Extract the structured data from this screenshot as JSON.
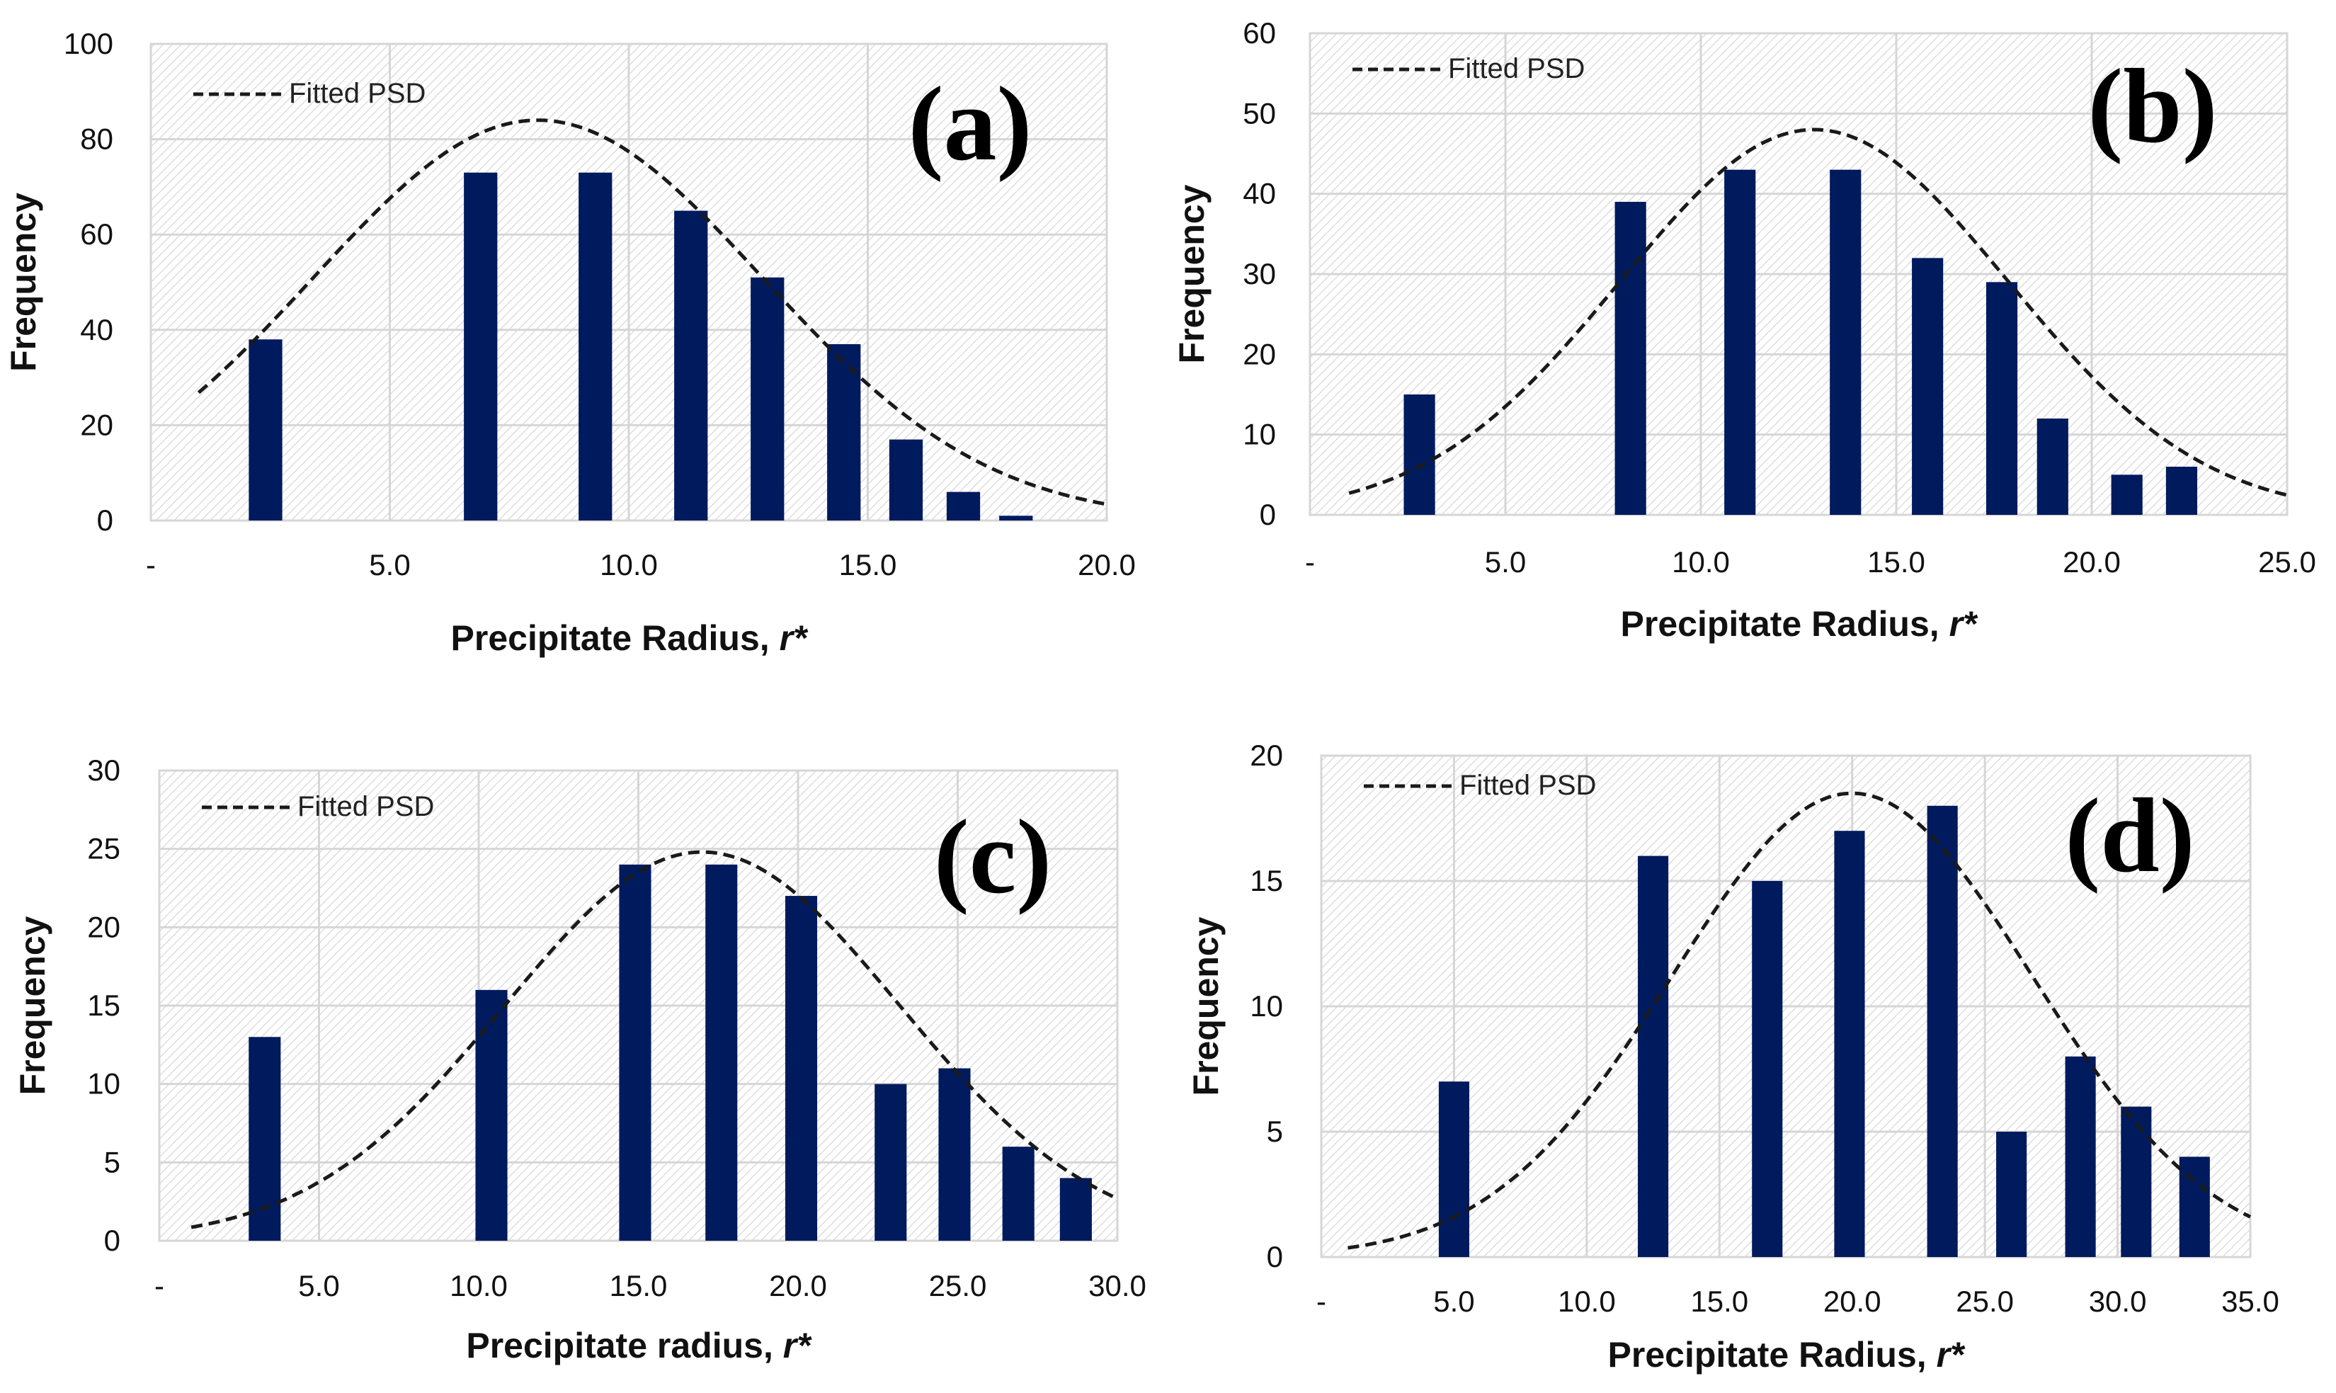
{
  "chart_data": [
    {
      "type": "bar",
      "panel_label": "(a)",
      "xlabel": "Precipitate Radius, ",
      "xlabel_italic": "r*",
      "ylabel": "Frequency",
      "xlim": [
        0,
        20
      ],
      "ylim": [
        0,
        100
      ],
      "xticks": [
        "-",
        "5.0",
        "10.0",
        "15.0",
        "20.0"
      ],
      "xtick_values": [
        0,
        5,
        10,
        15,
        20
      ],
      "yticks": [
        "0",
        "20",
        "40",
        "60",
        "80",
        "100"
      ],
      "ytick_values": [
        0,
        20,
        40,
        60,
        80,
        100
      ],
      "legend": "Fitted PSD",
      "legend_position": "top-left",
      "grid": true,
      "bar_width": 0.7,
      "bars": {
        "x": [
          2.4,
          6.9,
          9.3,
          11.3,
          12.9,
          14.5,
          15.8,
          17.0,
          18.1
        ],
        "values": [
          38,
          73,
          73,
          65,
          51,
          37,
          17,
          6,
          1
        ]
      },
      "fit": {
        "mean": 8.1,
        "sigma": 4.7,
        "peak": 84,
        "x_range": [
          1.0,
          20.0
        ]
      },
      "colors": {
        "bar": "#001a5e",
        "fit": "#1a1a1a"
      }
    },
    {
      "type": "bar",
      "panel_label": "(b)",
      "xlabel": "Precipitate Radius, ",
      "xlabel_italic": "r*",
      "ylabel": "Frequency",
      "xlim": [
        0,
        25
      ],
      "ylim": [
        0,
        60
      ],
      "xticks": [
        "-",
        "5.0",
        "10.0",
        "15.0",
        "20.0",
        "25.0"
      ],
      "xtick_values": [
        0,
        5,
        10,
        15,
        20,
        25
      ],
      "yticks": [
        "0",
        "10",
        "20",
        "30",
        "40",
        "50",
        "60"
      ],
      "ytick_values": [
        0,
        10,
        20,
        30,
        40,
        50,
        60
      ],
      "legend": "Fitted PSD",
      "legend_position": "top-left",
      "grid": true,
      "bar_width": 0.8,
      "bars": {
        "x": [
          2.8,
          8.2,
          11.0,
          13.7,
          15.8,
          17.7,
          19.0,
          20.9,
          22.3
        ],
        "values": [
          15,
          39,
          43,
          43,
          32,
          29,
          12,
          5,
          6
        ]
      },
      "fit": {
        "mean": 12.9,
        "sigma": 4.96,
        "peak": 48,
        "x_range": [
          1.0,
          25.0
        ]
      },
      "colors": {
        "bar": "#001a5e",
        "fit": "#1a1a1a"
      }
    },
    {
      "type": "bar",
      "panel_label": "(c)",
      "xlabel": "Precipitate radius, ",
      "xlabel_italic": "r*",
      "ylabel": "Frequency",
      "xlim": [
        0,
        30
      ],
      "ylim": [
        0,
        30
      ],
      "xticks": [
        "-",
        "5.0",
        "10.0",
        "15.0",
        "20.0",
        "25.0",
        "30.0"
      ],
      "xtick_values": [
        0,
        5,
        10,
        15,
        20,
        25,
        30
      ],
      "yticks": [
        "0",
        "5",
        "10",
        "15",
        "20",
        "25",
        "30"
      ],
      "ytick_values": [
        0,
        5,
        10,
        15,
        20,
        25,
        30
      ],
      "legend": "Fitted PSD",
      "legend_position": "top-left",
      "grid": true,
      "bar_width": 1.0,
      "bars": {
        "x": [
          3.3,
          10.4,
          14.9,
          17.6,
          20.1,
          22.9,
          24.9,
          26.9,
          28.7
        ],
        "values": [
          13,
          16,
          24,
          24,
          22,
          10,
          11,
          6,
          4
        ]
      },
      "fit": {
        "mean": 17.0,
        "sigma": 6.17,
        "peak": 24.8,
        "x_range": [
          1.0,
          30.0
        ]
      },
      "colors": {
        "bar": "#001a5e",
        "fit": "#1a1a1a"
      }
    },
    {
      "type": "bar",
      "panel_label": "(d)",
      "xlabel": "Precipitate Radius, ",
      "xlabel_italic": "r*",
      "ylabel": "Frequency",
      "xlim": [
        0,
        35
      ],
      "ylim": [
        0,
        20
      ],
      "xticks": [
        "-",
        "5.0",
        "10.0",
        "15.0",
        "20.0",
        "25.0",
        "30.0",
        "35.0"
      ],
      "xtick_values": [
        0,
        5,
        10,
        15,
        20,
        25,
        30,
        35
      ],
      "yticks": [
        "0",
        "5",
        "10",
        "15",
        "20"
      ],
      "ytick_values": [
        0,
        5,
        10,
        15,
        20
      ],
      "legend": "Fitted PSD",
      "legend_position": "top-left",
      "grid": true,
      "bar_width": 1.15,
      "bars": {
        "x": [
          5.0,
          12.5,
          16.8,
          19.9,
          23.4,
          26.0,
          28.6,
          30.7,
          32.9
        ],
        "values": [
          7,
          16,
          15,
          17,
          18,
          5,
          8,
          6,
          4
        ]
      },
      "fit": {
        "mean": 20.0,
        "sigma": 6.78,
        "peak": 18.5,
        "x_range": [
          1.0,
          35.0
        ]
      },
      "colors": {
        "bar": "#001a5e",
        "fit": "#1a1a1a"
      }
    }
  ]
}
